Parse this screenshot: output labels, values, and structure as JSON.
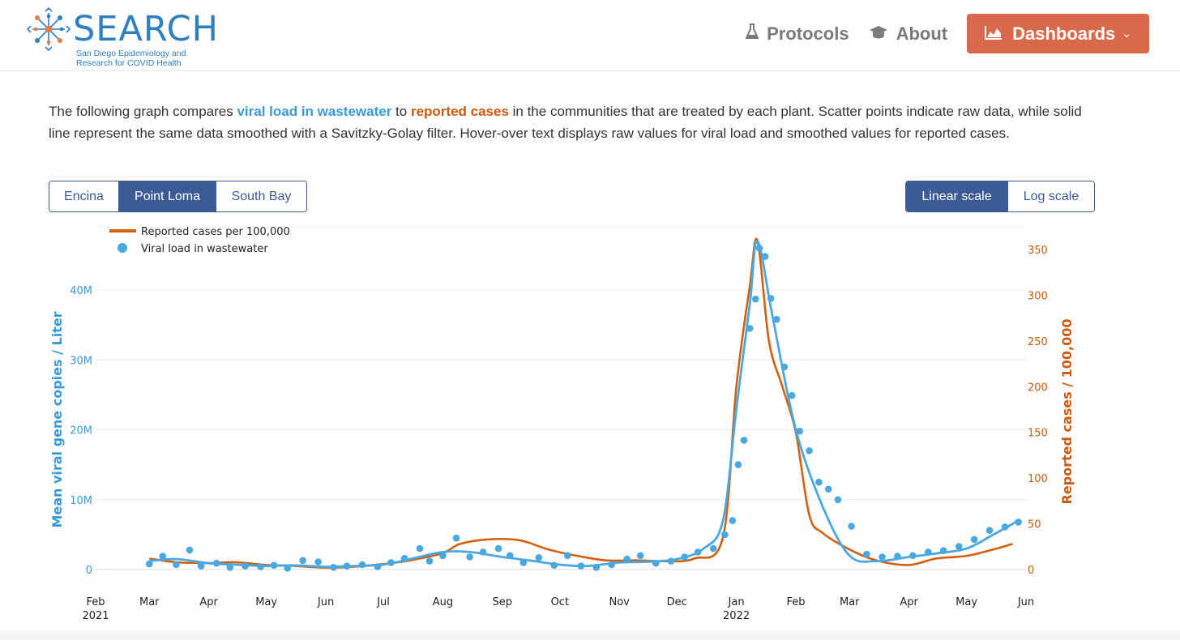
{
  "header": {
    "logo_word": "SEARCH",
    "logo_subtitle_line1": "San Diego Epidemiology and",
    "logo_subtitle_line2": "Research for COVID Health",
    "nav": {
      "protocols": "Protocols",
      "about": "About",
      "dashboards": "Dashboards"
    }
  },
  "intro": {
    "p1": "The following graph compares ",
    "link_viral": "viral load in wastewater",
    "p2": " to ",
    "link_cases": "reported cases",
    "p3": " in the communities that are treated by each plant. Scatter points indicate raw data, while solid line represent the same data smoothed with a Savitzky-Golay filter. Hover-over text displays raw values for viral load and smoothed values for reported cases."
  },
  "plant_buttons": [
    "Encina",
    "Point Loma",
    "South Bay"
  ],
  "active_plant": "Point Loma",
  "scale_buttons": [
    "Linear scale",
    "Log scale"
  ],
  "active_scale": "Linear scale",
  "colors": {
    "viral": "#4aa8e0",
    "cases": "#d2600e",
    "accent": "#3b5a96",
    "dashboards": "#d9694a"
  },
  "chart_data": {
    "type": "line",
    "legend": [
      "Reported cases per 100,000",
      "Viral load in wastewater"
    ],
    "legend_position": "top-left",
    "ylabel_left": "Mean viral gene copies / Liter",
    "ylabel_right": "Reported cases / 100,000",
    "ylim_left": [
      0,
      47000000
    ],
    "ylim_right": [
      0,
      362
    ],
    "yticks_left": [
      "0",
      "10M",
      "20M",
      "30M",
      "40M"
    ],
    "yticks_right": [
      "0",
      "50",
      "100",
      "150",
      "200",
      "250",
      "300",
      "350"
    ],
    "xticks": [
      {
        "label": "Feb",
        "sub": "2021"
      },
      {
        "label": "Mar",
        "sub": ""
      },
      {
        "label": "Apr",
        "sub": ""
      },
      {
        "label": "May",
        "sub": ""
      },
      {
        "label": "Jun",
        "sub": ""
      },
      {
        "label": "Jul",
        "sub": ""
      },
      {
        "label": "Aug",
        "sub": ""
      },
      {
        "label": "Sep",
        "sub": ""
      },
      {
        "label": "Oct",
        "sub": ""
      },
      {
        "label": "Nov",
        "sub": ""
      },
      {
        "label": "Dec",
        "sub": ""
      },
      {
        "label": "Jan",
        "sub": "2022"
      },
      {
        "label": "Feb",
        "sub": ""
      },
      {
        "label": "Mar",
        "sub": ""
      },
      {
        "label": "Apr",
        "sub": ""
      },
      {
        "label": "May",
        "sub": ""
      },
      {
        "label": "Jun",
        "sub": ""
      }
    ],
    "grid": true,
    "viral_smoothed": {
      "x": [
        "2021-03-01",
        "2021-03-15",
        "2021-04-01",
        "2021-04-15",
        "2021-05-01",
        "2021-05-15",
        "2021-06-01",
        "2021-06-15",
        "2021-07-01",
        "2021-07-15",
        "2021-08-01",
        "2021-08-15",
        "2021-09-01",
        "2021-09-15",
        "2021-10-01",
        "2021-10-15",
        "2021-11-01",
        "2021-11-15",
        "2021-12-01",
        "2021-12-15",
        "2021-12-25",
        "2022-01-01",
        "2022-01-08",
        "2022-01-12",
        "2022-01-20",
        "2022-02-01",
        "2022-02-15",
        "2022-03-01",
        "2022-03-15",
        "2022-04-01",
        "2022-04-15",
        "2022-05-01",
        "2022-05-15",
        "2022-05-28"
      ],
      "y": [
        1200000,
        1500000,
        900000,
        700000,
        500000,
        600000,
        400000,
        500000,
        700000,
        1500000,
        2500000,
        2500000,
        1800000,
        1300000,
        700000,
        500000,
        1000000,
        1100000,
        1500000,
        3000000,
        7000000,
        23000000,
        38000000,
        47000000,
        36000000,
        20000000,
        9000000,
        2000000,
        1200000,
        1800000,
        2300000,
        3000000,
        5000000,
        7000000
      ]
    },
    "cases_smoothed": {
      "x": [
        "2021-03-01",
        "2021-03-15",
        "2021-04-01",
        "2021-04-15",
        "2021-05-01",
        "2021-05-15",
        "2021-06-01",
        "2021-06-15",
        "2021-07-01",
        "2021-07-15",
        "2021-08-01",
        "2021-08-10",
        "2021-08-25",
        "2021-09-10",
        "2021-09-25",
        "2021-10-10",
        "2021-10-25",
        "2021-11-10",
        "2021-11-25",
        "2021-12-10",
        "2021-12-25",
        "2022-01-01",
        "2022-01-08",
        "2022-01-12",
        "2022-01-18",
        "2022-01-25",
        "2022-02-01",
        "2022-02-08",
        "2022-02-15",
        "2022-03-01",
        "2022-03-15",
        "2022-04-01",
        "2022-04-15",
        "2022-05-01",
        "2022-05-15",
        "2022-05-25"
      ],
      "y": [
        12,
        8,
        7,
        8,
        5,
        4,
        2,
        3,
        6,
        10,
        18,
        28,
        33,
        32,
        22,
        15,
        10,
        10,
        9,
        12,
        35,
        200,
        310,
        360,
        250,
        200,
        150,
        60,
        40,
        22,
        10,
        5,
        12,
        15,
        22,
        28
      ]
    },
    "viral_raw": {
      "x": [
        "2021-03-01",
        "2021-03-08",
        "2021-03-15",
        "2021-03-22",
        "2021-03-28",
        "2021-04-05",
        "2021-04-12",
        "2021-04-20",
        "2021-04-28",
        "2021-05-05",
        "2021-05-12",
        "2021-05-20",
        "2021-05-28",
        "2021-06-05",
        "2021-06-12",
        "2021-06-20",
        "2021-06-28",
        "2021-07-05",
        "2021-07-12",
        "2021-07-20",
        "2021-07-25",
        "2021-08-01",
        "2021-08-08",
        "2021-08-15",
        "2021-08-22",
        "2021-08-30",
        "2021-09-05",
        "2021-09-12",
        "2021-09-20",
        "2021-09-28",
        "2021-10-05",
        "2021-10-12",
        "2021-10-20",
        "2021-10-28",
        "2021-11-05",
        "2021-11-12",
        "2021-11-20",
        "2021-11-28",
        "2021-12-05",
        "2021-12-12",
        "2021-12-20",
        "2021-12-26",
        "2021-12-30",
        "2022-01-02",
        "2022-01-05",
        "2022-01-08",
        "2022-01-11",
        "2022-01-13",
        "2022-01-16",
        "2022-01-19",
        "2022-01-22",
        "2022-01-26",
        "2022-01-30",
        "2022-02-03",
        "2022-02-08",
        "2022-02-13",
        "2022-02-18",
        "2022-02-23",
        "2022-03-02",
        "2022-03-10",
        "2022-03-18",
        "2022-03-26",
        "2022-04-03",
        "2022-04-11",
        "2022-04-19",
        "2022-04-27",
        "2022-05-05",
        "2022-05-13",
        "2022-05-21",
        "2022-05-28"
      ],
      "y": [
        800000,
        1900000,
        700000,
        2800000,
        500000,
        900000,
        300000,
        500000,
        400000,
        600000,
        200000,
        1300000,
        1100000,
        300000,
        500000,
        700000,
        400000,
        1000000,
        1600000,
        3000000,
        1200000,
        2000000,
        4500000,
        1800000,
        2500000,
        3000000,
        2000000,
        1000000,
        1700000,
        600000,
        2000000,
        500000,
        300000,
        700000,
        1500000,
        2000000,
        900000,
        1200000,
        1800000,
        2500000,
        3000000,
        5000000,
        7000000,
        15000000,
        18500000,
        34500000,
        38700000,
        46000000,
        44800000,
        38800000,
        35800000,
        29000000,
        24900000,
        19800000,
        17000000,
        12500000,
        11500000,
        10000000,
        6200000,
        2200000,
        1800000,
        1900000,
        2000000,
        2500000,
        2700000,
        3300000,
        4300000,
        5600000,
        6100000,
        6800000
      ]
    }
  }
}
